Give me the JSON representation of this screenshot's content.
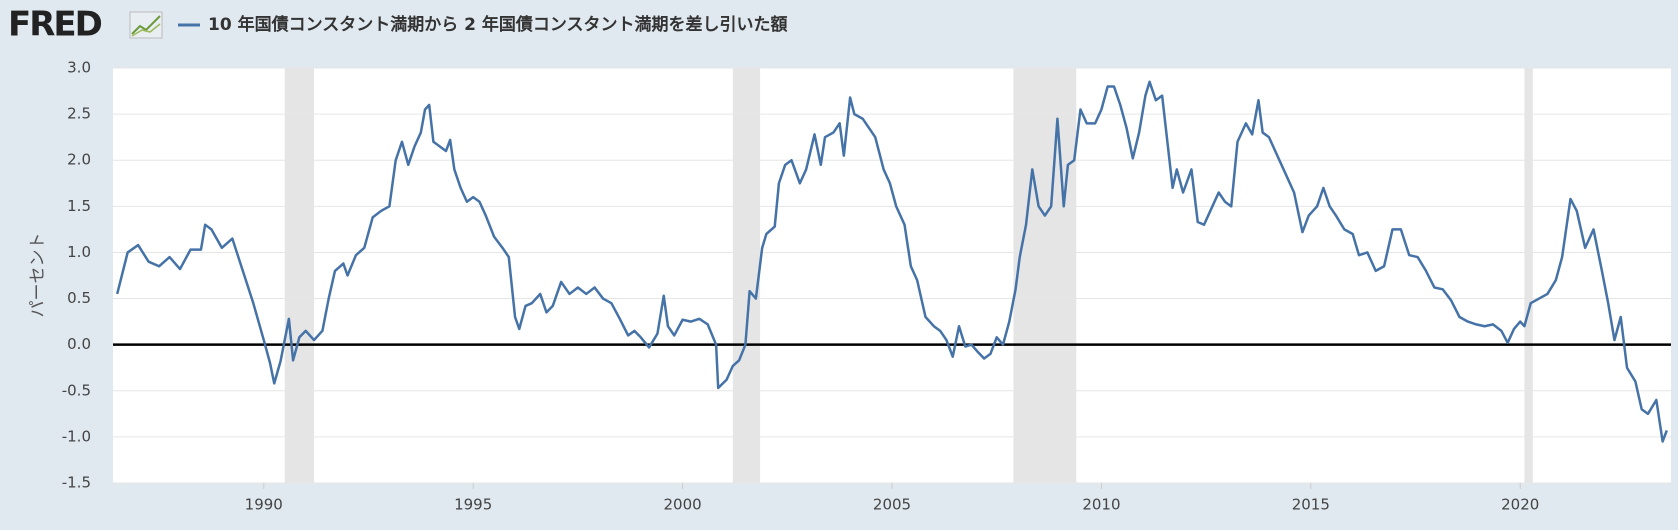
{
  "logo": "FRED",
  "chart_data": {
    "type": "line",
    "ylabel": "パーセント",
    "x": [
      1986.5,
      1986.75,
      1987.0,
      1987.25,
      1987.5,
      1987.75,
      1988.0,
      1988.25,
      1988.5,
      1988.6,
      1988.75,
      1989.0,
      1989.25,
      1989.5,
      1989.75,
      1990.0,
      1990.15,
      1990.25,
      1990.4,
      1990.6,
      1990.7,
      1990.85,
      1991.0,
      1991.2,
      1991.4,
      1991.55,
      1991.7,
      1991.9,
      1992.0,
      1992.2,
      1992.4,
      1992.6,
      1992.8,
      1993.0,
      1993.15,
      1993.3,
      1993.45,
      1993.6,
      1993.75,
      1993.85,
      1993.95,
      1994.05,
      1994.2,
      1994.35,
      1994.45,
      1994.55,
      1994.7,
      1994.85,
      1995.0,
      1995.15,
      1995.3,
      1995.5,
      1995.7,
      1995.85,
      1996.0,
      1996.1,
      1996.25,
      1996.4,
      1996.6,
      1996.75,
      1996.9,
      1997.1,
      1997.3,
      1997.5,
      1997.7,
      1997.9,
      1998.1,
      1998.3,
      1998.5,
      1998.7,
      1998.85,
      1999.0,
      1999.2,
      1999.4,
      1999.55,
      1999.65,
      1999.8,
      2000.0,
      2000.2,
      2000.4,
      2000.6,
      2000.8,
      2000.85,
      2001.05,
      2001.2,
      2001.35,
      2001.5,
      2001.6,
      2001.75,
      2001.9,
      2002.0,
      2002.2,
      2002.3,
      2002.45,
      2002.6,
      2002.8,
      2002.95,
      2003.15,
      2003.3,
      2003.4,
      2003.6,
      2003.75,
      2003.85,
      2004.0,
      2004.1,
      2004.3,
      2004.45,
      2004.6,
      2004.8,
      2004.95,
      2005.1,
      2005.3,
      2005.45,
      2005.6,
      2005.8,
      2006.0,
      2006.15,
      2006.3,
      2006.45,
      2006.6,
      2006.75,
      2006.9,
      2007.05,
      2007.2,
      2007.35,
      2007.5,
      2007.65,
      2007.8,
      2007.95,
      2008.05,
      2008.2,
      2008.35,
      2008.5,
      2008.65,
      2008.8,
      2008.95,
      2009.1,
      2009.2,
      2009.35,
      2009.5,
      2009.65,
      2009.85,
      2010.0,
      2010.15,
      2010.3,
      2010.45,
      2010.6,
      2010.75,
      2010.9,
      2011.05,
      2011.15,
      2011.3,
      2011.45,
      2011.55,
      2011.7,
      2011.8,
      2011.95,
      2012.15,
      2012.3,
      2012.45,
      2012.6,
      2012.8,
      2012.95,
      2013.1,
      2013.25,
      2013.45,
      2013.6,
      2013.75,
      2013.85,
      2014.0,
      2014.2,
      2014.4,
      2014.6,
      2014.8,
      2014.95,
      2015.15,
      2015.3,
      2015.45,
      2015.6,
      2015.8,
      2016.0,
      2016.15,
      2016.35,
      2016.55,
      2016.75,
      2016.95,
      2017.15,
      2017.35,
      2017.55,
      2017.75,
      2017.95,
      2018.15,
      2018.35,
      2018.55,
      2018.75,
      2018.95,
      2019.15,
      2019.35,
      2019.55,
      2019.7,
      2019.85,
      2020.0,
      2020.1,
      2020.25,
      2020.45,
      2020.65,
      2020.85,
      2021.0,
      2021.2,
      2021.35,
      2021.55,
      2021.75,
      2021.95,
      2022.1,
      2022.25,
      2022.4,
      2022.55,
      2022.75,
      2022.9,
      2023.05,
      2023.25,
      2023.4,
      2023.5
    ],
    "series": [
      {
        "name": "10 年国債コンスタント満期から 2 年国債コンスタント満期を差し引いた額",
        "color": "#4572a7",
        "values": [
          0.55,
          1.0,
          1.08,
          0.9,
          0.85,
          0.95,
          0.82,
          1.03,
          1.03,
          1.3,
          1.25,
          1.05,
          1.15,
          0.8,
          0.45,
          0.05,
          -0.2,
          -0.42,
          -0.18,
          0.28,
          -0.17,
          0.08,
          0.15,
          0.05,
          0.15,
          0.5,
          0.8,
          0.88,
          0.75,
          0.97,
          1.05,
          1.38,
          1.45,
          1.5,
          2.0,
          2.2,
          1.95,
          2.15,
          2.3,
          2.55,
          2.6,
          2.2,
          2.15,
          2.1,
          2.22,
          1.9,
          1.7,
          1.55,
          1.6,
          1.55,
          1.4,
          1.17,
          1.05,
          0.95,
          0.3,
          0.17,
          0.42,
          0.45,
          0.55,
          0.35,
          0.42,
          0.68,
          0.55,
          0.62,
          0.55,
          0.62,
          0.5,
          0.45,
          0.28,
          0.1,
          0.15,
          0.08,
          -0.03,
          0.12,
          0.53,
          0.2,
          0.1,
          0.27,
          0.25,
          0.28,
          0.22,
          0.0,
          -0.47,
          -0.38,
          -0.23,
          -0.17,
          0.0,
          0.58,
          0.5,
          1.05,
          1.2,
          1.28,
          1.75,
          1.95,
          2.0,
          1.75,
          1.9,
          2.28,
          1.95,
          2.25,
          2.3,
          2.4,
          2.05,
          2.68,
          2.5,
          2.45,
          2.35,
          2.25,
          1.9,
          1.75,
          1.5,
          1.3,
          0.85,
          0.7,
          0.3,
          0.2,
          0.15,
          0.05,
          -0.13,
          0.2,
          -0.02,
          0.0,
          -0.08,
          -0.15,
          -0.1,
          0.08,
          0.0,
          0.25,
          0.6,
          0.95,
          1.3,
          1.9,
          1.5,
          1.4,
          1.5,
          2.45,
          1.5,
          1.95,
          2.0,
          2.55,
          2.4,
          2.4,
          2.55,
          2.8,
          2.8,
          2.6,
          2.35,
          2.02,
          2.3,
          2.7,
          2.85,
          2.65,
          2.7,
          2.3,
          1.7,
          1.9,
          1.65,
          1.9,
          1.33,
          1.3,
          1.45,
          1.65,
          1.55,
          1.5,
          2.2,
          2.4,
          2.28,
          2.65,
          2.3,
          2.25,
          2.05,
          1.85,
          1.65,
          1.22,
          1.4,
          1.5,
          1.7,
          1.5,
          1.4,
          1.25,
          1.2,
          0.97,
          1.0,
          0.8,
          0.85,
          1.25,
          1.25,
          0.97,
          0.95,
          0.8,
          0.62,
          0.6,
          0.48,
          0.3,
          0.25,
          0.22,
          0.2,
          0.22,
          0.15,
          0.02,
          0.17,
          0.25,
          0.2,
          0.45,
          0.5,
          0.55,
          0.7,
          0.95,
          1.58,
          1.45,
          1.05,
          1.25,
          0.8,
          0.45,
          0.05,
          0.3,
          -0.25,
          -0.4,
          -0.7,
          -0.75,
          -0.6,
          -1.05,
          -0.93
        ]
      }
    ],
    "recessions": [
      [
        1990.5,
        1991.2
      ],
      [
        2001.2,
        2001.85
      ],
      [
        2007.9,
        2009.4
      ],
      [
        2020.1,
        2020.3
      ]
    ],
    "baseline": 0,
    "xlim": [
      1986.4,
      2023.6
    ],
    "xticks": [
      1990,
      1995,
      2000,
      2005,
      2010,
      2015,
      2020
    ],
    "ylim": [
      -1.5,
      3.0
    ],
    "yticks": [
      {
        "value": -1.5,
        "label": "-1.5"
      },
      {
        "value": -1.0,
        "label": "-1.0"
      },
      {
        "value": -0.5,
        "label": "-0.5"
      },
      {
        "value": 0,
        "label": "0.0"
      },
      {
        "value": 0.5,
        "label": "0.5"
      },
      {
        "value": 1.0,
        "label": "1.0"
      },
      {
        "value": 1.5,
        "label": "1.5"
      },
      {
        "value": 2.0,
        "label": "2.0"
      },
      {
        "value": 2.5,
        "label": "2.5"
      },
      {
        "value": 3.0,
        "label": "3.0"
      }
    ],
    "grid": true
  }
}
